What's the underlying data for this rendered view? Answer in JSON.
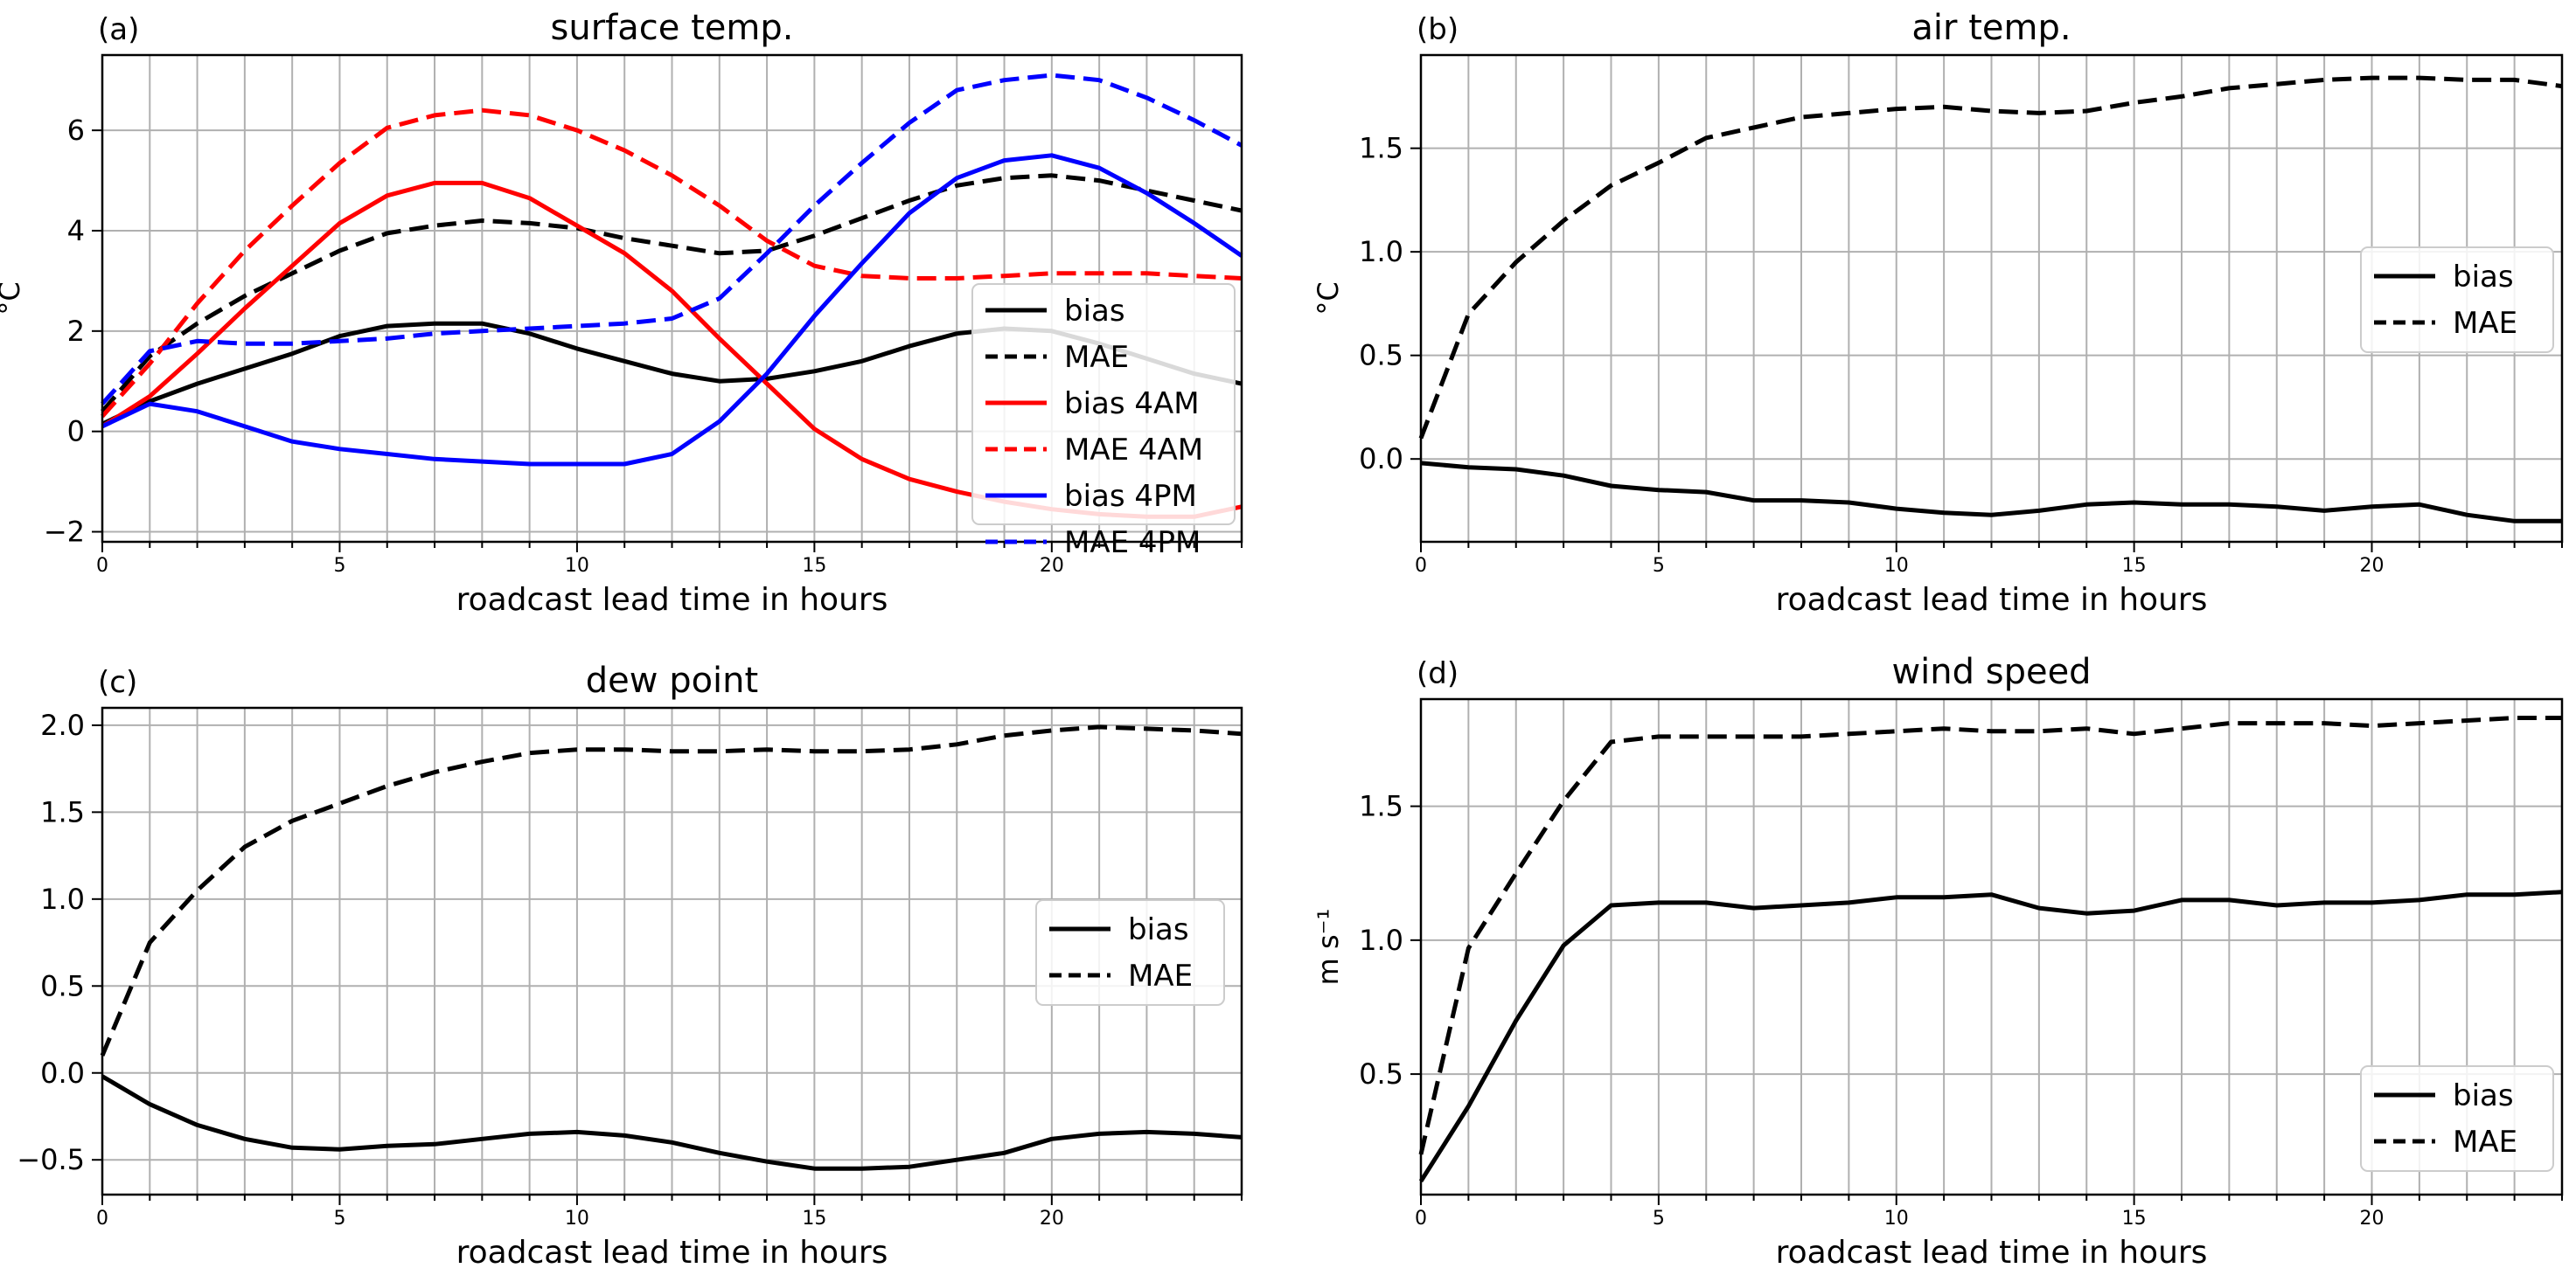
{
  "chart_data": [
    {
      "panel": "(a)",
      "type": "line",
      "title": "surface temp.",
      "xlabel": "roadcast lead time in hours",
      "ylabel": "°C",
      "xlim": [
        0,
        24
      ],
      "ylim": [
        -2.2,
        7.5
      ],
      "xticks": [
        0,
        5,
        10,
        15,
        20
      ],
      "yticks": [
        -2,
        0,
        2,
        4,
        6
      ],
      "x": [
        0,
        1,
        2,
        3,
        4,
        5,
        6,
        7,
        8,
        9,
        10,
        11,
        12,
        13,
        14,
        15,
        16,
        17,
        18,
        19,
        20,
        21,
        22,
        23,
        24
      ],
      "legend_loc": "center right",
      "series": [
        {
          "name": "bias",
          "color": "#000000",
          "dash": "solid",
          "values": [
            0.15,
            0.6,
            0.95,
            1.25,
            1.55,
            1.9,
            2.1,
            2.15,
            2.15,
            1.95,
            1.65,
            1.4,
            1.15,
            1.0,
            1.05,
            1.2,
            1.4,
            1.7,
            1.95,
            2.05,
            2.0,
            1.75,
            1.45,
            1.15,
            0.95
          ]
        },
        {
          "name": "MAE",
          "color": "#000000",
          "dash": "dashed",
          "values": [
            0.4,
            1.5,
            2.15,
            2.7,
            3.15,
            3.6,
            3.95,
            4.1,
            4.2,
            4.15,
            4.05,
            3.85,
            3.7,
            3.55,
            3.6,
            3.9,
            4.25,
            4.6,
            4.9,
            5.05,
            5.1,
            5.0,
            4.8,
            4.6,
            4.4
          ]
        },
        {
          "name": "bias 4AM",
          "color": "#ff0000",
          "dash": "solid",
          "values": [
            0.1,
            0.7,
            1.55,
            2.45,
            3.3,
            4.15,
            4.7,
            4.95,
            4.95,
            4.65,
            4.1,
            3.55,
            2.8,
            1.85,
            0.95,
            0.05,
            -0.55,
            -0.95,
            -1.2,
            -1.4,
            -1.55,
            -1.65,
            -1.7,
            -1.7,
            -1.5
          ]
        },
        {
          "name": "MAE 4AM",
          "color": "#ff0000",
          "dash": "dashed",
          "values": [
            0.3,
            1.35,
            2.55,
            3.6,
            4.5,
            5.35,
            6.05,
            6.3,
            6.4,
            6.3,
            6.0,
            5.6,
            5.1,
            4.5,
            3.8,
            3.3,
            3.1,
            3.05,
            3.05,
            3.1,
            3.15,
            3.15,
            3.15,
            3.1,
            3.05
          ]
        },
        {
          "name": "bias 4PM",
          "color": "#0000ff",
          "dash": "solid",
          "values": [
            0.1,
            0.55,
            0.4,
            0.1,
            -0.2,
            -0.35,
            -0.45,
            -0.55,
            -0.6,
            -0.65,
            -0.65,
            -0.65,
            -0.45,
            0.2,
            1.15,
            2.3,
            3.35,
            4.35,
            5.05,
            5.4,
            5.5,
            5.25,
            4.75,
            4.15,
            3.5
          ]
        },
        {
          "name": "MAE 4PM",
          "color": "#0000ff",
          "dash": "dashed",
          "values": [
            0.55,
            1.6,
            1.8,
            1.75,
            1.75,
            1.8,
            1.85,
            1.95,
            2.0,
            2.05,
            2.1,
            2.15,
            2.25,
            2.65,
            3.55,
            4.5,
            5.35,
            6.15,
            6.8,
            7.0,
            7.1,
            7.0,
            6.65,
            6.2,
            5.7
          ]
        }
      ]
    },
    {
      "panel": "(b)",
      "type": "line",
      "title": "air temp.",
      "xlabel": "roadcast lead time in hours",
      "ylabel": "°C",
      "xlim": [
        0,
        24
      ],
      "ylim": [
        -0.4,
        1.95
      ],
      "xticks": [
        0,
        5,
        10,
        15,
        20
      ],
      "yticks": [
        0.0,
        0.5,
        1.0,
        1.5
      ],
      "x": [
        0,
        1,
        2,
        3,
        4,
        5,
        6,
        7,
        8,
        9,
        10,
        11,
        12,
        13,
        14,
        15,
        16,
        17,
        18,
        19,
        20,
        21,
        22,
        23,
        24
      ],
      "legend_loc": "center right",
      "series": [
        {
          "name": "bias",
          "color": "#000000",
          "dash": "solid",
          "values": [
            -0.02,
            -0.04,
            -0.05,
            -0.08,
            -0.13,
            -0.15,
            -0.16,
            -0.2,
            -0.2,
            -0.21,
            -0.24,
            -0.26,
            -0.27,
            -0.25,
            -0.22,
            -0.21,
            -0.22,
            -0.22,
            -0.23,
            -0.25,
            -0.23,
            -0.22,
            -0.27,
            -0.3,
            -0.3
          ]
        },
        {
          "name": "MAE",
          "color": "#000000",
          "dash": "dashed",
          "values": [
            0.1,
            0.7,
            0.95,
            1.15,
            1.32,
            1.43,
            1.55,
            1.6,
            1.65,
            1.67,
            1.69,
            1.7,
            1.68,
            1.67,
            1.68,
            1.72,
            1.75,
            1.79,
            1.81,
            1.83,
            1.84,
            1.84,
            1.83,
            1.83,
            1.8
          ]
        }
      ]
    },
    {
      "panel": "(c)",
      "type": "line",
      "title": "dew point",
      "xlabel": "roadcast lead time in hours",
      "ylabel": "",
      "xlim": [
        0,
        24
      ],
      "ylim": [
        -0.7,
        2.1
      ],
      "xticks": [
        0,
        5,
        10,
        15,
        20
      ],
      "yticks": [
        -0.5,
        0.0,
        0.5,
        1.0,
        1.5,
        2.0
      ],
      "x": [
        0,
        1,
        2,
        3,
        4,
        5,
        6,
        7,
        8,
        9,
        10,
        11,
        12,
        13,
        14,
        15,
        16,
        17,
        18,
        19,
        20,
        21,
        22,
        23,
        24
      ],
      "legend_loc": "center right",
      "series": [
        {
          "name": "bias",
          "color": "#000000",
          "dash": "solid",
          "values": [
            -0.02,
            -0.18,
            -0.3,
            -0.38,
            -0.43,
            -0.44,
            -0.42,
            -0.41,
            -0.38,
            -0.35,
            -0.34,
            -0.36,
            -0.4,
            -0.46,
            -0.51,
            -0.55,
            -0.55,
            -0.54,
            -0.5,
            -0.46,
            -0.38,
            -0.35,
            -0.34,
            -0.35,
            -0.37
          ]
        },
        {
          "name": "MAE",
          "color": "#000000",
          "dash": "dashed",
          "values": [
            0.1,
            0.75,
            1.05,
            1.3,
            1.45,
            1.55,
            1.65,
            1.73,
            1.79,
            1.84,
            1.86,
            1.86,
            1.85,
            1.85,
            1.86,
            1.85,
            1.85,
            1.86,
            1.89,
            1.94,
            1.97,
            1.99,
            1.98,
            1.97,
            1.95
          ]
        }
      ]
    },
    {
      "panel": "(d)",
      "type": "line",
      "title": "wind speed",
      "xlabel": "roadcast lead time in hours",
      "ylabel": "m s⁻¹",
      "xlim": [
        0,
        24
      ],
      "ylim": [
        0.05,
        1.9
      ],
      "xticks": [
        0,
        5,
        10,
        15,
        20
      ],
      "yticks": [
        0.5,
        1.0,
        1.5
      ],
      "x": [
        0,
        1,
        2,
        3,
        4,
        5,
        6,
        7,
        8,
        9,
        10,
        11,
        12,
        13,
        14,
        15,
        16,
        17,
        18,
        19,
        20,
        21,
        22,
        23,
        24
      ],
      "legend_loc": "lower right",
      "series": [
        {
          "name": "bias",
          "color": "#000000",
          "dash": "solid",
          "values": [
            0.1,
            0.38,
            0.7,
            0.98,
            1.13,
            1.14,
            1.14,
            1.12,
            1.13,
            1.14,
            1.16,
            1.16,
            1.17,
            1.12,
            1.1,
            1.11,
            1.15,
            1.15,
            1.13,
            1.14,
            1.14,
            1.15,
            1.17,
            1.17,
            1.18
          ]
        },
        {
          "name": "MAE",
          "color": "#000000",
          "dash": "dashed",
          "values": [
            0.2,
            0.97,
            1.25,
            1.52,
            1.74,
            1.76,
            1.76,
            1.76,
            1.76,
            1.77,
            1.78,
            1.79,
            1.78,
            1.78,
            1.79,
            1.77,
            1.79,
            1.81,
            1.81,
            1.81,
            1.8,
            1.81,
            1.82,
            1.83,
            1.83
          ]
        }
      ]
    }
  ]
}
